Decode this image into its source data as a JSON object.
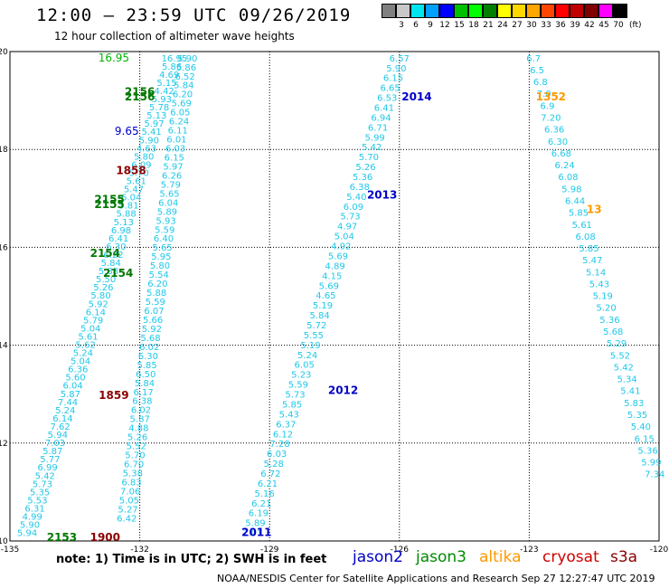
{
  "header": {
    "title": "12:00 — 23:59 UTC 09/26/2019",
    "subtitle": "12 hour collection of altimeter wave heights"
  },
  "colorbar": {
    "unit": "(ft)",
    "bins": [
      {
        "label": "",
        "color": "#808080"
      },
      {
        "label": "3",
        "color": "#c8c8c8"
      },
      {
        "label": "6",
        "color": "#00e5ee"
      },
      {
        "label": "9",
        "color": "#00a0ff"
      },
      {
        "label": "12",
        "color": "#0000ff"
      },
      {
        "label": "15",
        "color": "#00c000"
      },
      {
        "label": "18",
        "color": "#00ff00"
      },
      {
        "label": "21",
        "color": "#008000"
      },
      {
        "label": "24",
        "color": "#ffff00"
      },
      {
        "label": "27",
        "color": "#ffd700"
      },
      {
        "label": "30",
        "color": "#ffa500"
      },
      {
        "label": "33",
        "color": "#ff4500"
      },
      {
        "label": "36",
        "color": "#ff0000"
      },
      {
        "label": "39",
        "color": "#c00000"
      },
      {
        "label": "42",
        "color": "#800000"
      },
      {
        "label": "45",
        "color": "#ff00ff"
      },
      {
        "label": "70",
        "color": "#000000"
      }
    ]
  },
  "map": {
    "lon_range": [
      -135,
      -120
    ],
    "lat_range": [
      10,
      20
    ],
    "lon_ticks": [
      "-135",
      "-132",
      "-129",
      "-126",
      "-123",
      "-120"
    ],
    "lat_ticks": [
      "20",
      "18",
      "16",
      "14",
      "12",
      "10"
    ],
    "value_color": "#1fc8e8",
    "tracks": [
      {
        "id": "track-2011",
        "values": [
          "7.01",
          "5.89",
          "6.19",
          "6.21",
          "5.16",
          "6.21",
          "6.72",
          "5.28",
          "6.03",
          "7.28",
          "6.12",
          "6.37",
          "5.43",
          "5.85",
          "5.73",
          "5.59",
          "5.23",
          "6.05",
          "5.24",
          "5.19",
          "5.55",
          "5.72",
          "5.84",
          "5.19",
          "4.65",
          "5.69",
          "4.15",
          "4.89",
          "5.69",
          "4.92",
          "5.04",
          "4.97",
          "5.73",
          "6.09",
          "5.40",
          "6.38",
          "5.36",
          "5.26",
          "5.70",
          "5.42",
          "5.99",
          "6.71",
          "6.94",
          "6.41",
          "6.53",
          "6.65",
          "6.15",
          "5.90",
          "6.57"
        ]
      },
      {
        "id": "track-1352",
        "values": [
          "7.34",
          "5.99",
          "5.36",
          "6.15",
          "5.40",
          "5.35",
          "5.83",
          "5.41",
          "5.34",
          "5.42",
          "5.52",
          "5.29",
          "5.68",
          "5.36",
          "5.20",
          "5.19",
          "5.43",
          "5.14",
          "5.47",
          "5.85",
          "6.08",
          "5.61",
          "5.85",
          "6.44",
          "5.98",
          "6.08",
          "6.24",
          "6.68",
          "6.30",
          "6.36",
          "7.20",
          "6.9",
          "7.0",
          "6.8",
          "6.5",
          "6.7"
        ]
      },
      {
        "id": "track-2153",
        "values": [
          "5.94",
          "5.90",
          "4.99",
          "6.31",
          "5.53",
          "5.35",
          "5.73",
          "5.42",
          "6.99",
          "5.77",
          "5.87",
          "7.03",
          "5.94",
          "7.62",
          "6.14",
          "5.24",
          "7.44",
          "5.87",
          "6.04",
          "5.60",
          "6.36",
          "5.04",
          "5.24",
          "5.62",
          "5.61",
          "5.04",
          "5.79",
          "6.14",
          "5.92",
          "5.80",
          "5.26",
          "5.50",
          "5.88",
          "5.84",
          "6.22",
          "6.30",
          "6.41",
          "6.98",
          "5.13",
          "5.88",
          "5.81",
          "6.04",
          "5.47",
          "5.61",
          "5.70",
          "6.09",
          "5.80",
          "4.63",
          "5.90",
          "5.41",
          "5.97",
          "5.13",
          "5.78",
          "5.93",
          "4.42",
          "5.15",
          "4.69",
          "5.86",
          "16.95"
        ]
      },
      {
        "id": "track-1900",
        "values": [
          "6.42",
          "5.27",
          "5.05",
          "7.06",
          "6.83",
          "5.38",
          "6.70",
          "5.70",
          "5.52",
          "5.26",
          "4.88",
          "5.87",
          "6.02",
          "6.38",
          "6.17",
          "5.84",
          "6.50",
          "5.85",
          "6.30",
          "6.02",
          "5.68",
          "5.92",
          "5.66",
          "6.07",
          "5.59",
          "5.88",
          "6.20",
          "5.54",
          "5.80",
          "5.95",
          "5.65",
          "6.40",
          "5.59",
          "5.93",
          "5.89",
          "6.04",
          "5.65",
          "5.79",
          "6.26",
          "5.97",
          "6.15",
          "6.03",
          "6.01",
          "6.11",
          "6.24",
          "6.05",
          "5.69",
          "6.20",
          "5.84",
          "6.52",
          "5.86",
          "5.90"
        ]
      }
    ],
    "labels": [
      {
        "text": "2014",
        "color": "#0000c8"
      },
      {
        "text": "2013",
        "color": "#0000c8"
      },
      {
        "text": "2012",
        "color": "#0000c8"
      },
      {
        "text": "2011",
        "color": "#0000c8"
      },
      {
        "text": "1352",
        "color": "#ff9900"
      },
      {
        "text": "13",
        "color": "#ff9900"
      },
      {
        "text": "2156",
        "color": "#007800"
      },
      {
        "text": "2156",
        "color": "#007800"
      },
      {
        "text": "2155",
        "color": "#007800"
      },
      {
        "text": "2155",
        "color": "#007800"
      },
      {
        "text": "2154",
        "color": "#007800"
      },
      {
        "text": "2154",
        "color": "#007800"
      },
      {
        "text": "2153",
        "color": "#007800"
      },
      {
        "text": "1858",
        "color": "#8b0000"
      },
      {
        "text": "1859",
        "color": "#8b0000"
      },
      {
        "text": "1900",
        "color": "#8b0000"
      },
      {
        "text": "16.95",
        "color": "#00b400"
      },
      {
        "text": "9.65",
        "color": "#0000c8"
      }
    ]
  },
  "note": "note:  1) Time is in UTC; 2) SWH is in feet",
  "legend": [
    {
      "name": "jason2",
      "color": "#0000c8"
    },
    {
      "name": "jason3",
      "color": "#008c00"
    },
    {
      "name": "altika",
      "color": "#ff9900"
    },
    {
      "name": "cryosat",
      "color": "#d00000"
    },
    {
      "name": "s3a",
      "color": "#8b0000"
    }
  ],
  "credit": "NOAA/NESDIS Center for Satellite Applications and Research   Sep 27 12:27:47 UTC 2019"
}
